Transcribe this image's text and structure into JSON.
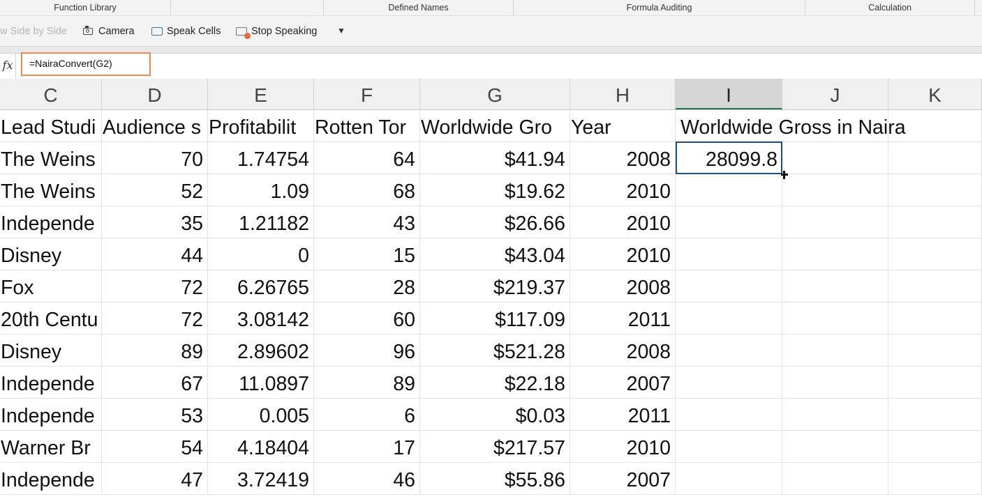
{
  "ribbon": {
    "groups": [
      "Function Library",
      "Defined Names",
      "Formula Auditing",
      "Calculation"
    ]
  },
  "toolbar": {
    "side_by_side": "w Side by Side",
    "camera": "Camera",
    "speak_cells": "Speak Cells",
    "stop_speaking": "Stop Speaking",
    "more_icon": "chevron-down-icon"
  },
  "formula_bar": {
    "fx_label": "fx",
    "formula": "=NairaConvert(G2)"
  },
  "sheet": {
    "columns": [
      "C",
      "D",
      "E",
      "F",
      "G",
      "H",
      "I",
      "J",
      "K"
    ],
    "selected_column": "I",
    "header_row": [
      "Lead Studi",
      "Audience s",
      "Profitabilit",
      "Rotten Tor",
      "Worldwide Gro",
      "Year",
      "Worldwide Gross in Naira",
      "",
      ""
    ],
    "rows": [
      [
        "The Weins",
        "70",
        "1.74754",
        "64",
        "$41.94",
        "2008",
        "28099.8",
        "",
        ""
      ],
      [
        "The Weins",
        "52",
        "1.09",
        "68",
        "$19.62",
        "2010",
        "",
        "",
        ""
      ],
      [
        "Independe",
        "35",
        "1.21182",
        "43",
        "$26.66",
        "2010",
        "",
        "",
        ""
      ],
      [
        "Disney",
        "44",
        "0",
        "15",
        "$43.04",
        "2010",
        "",
        "",
        ""
      ],
      [
        "Fox",
        "72",
        "6.26765",
        "28",
        "$219.37",
        "2008",
        "",
        "",
        ""
      ],
      [
        "20th Centu",
        "72",
        "3.08142",
        "60",
        "$117.09",
        "2011",
        "",
        "",
        ""
      ],
      [
        "Disney",
        "89",
        "2.89602",
        "96",
        "$521.28",
        "2008",
        "",
        "",
        ""
      ],
      [
        "Independe",
        "67",
        "11.0897",
        "89",
        "$22.18",
        "2007",
        "",
        "",
        ""
      ],
      [
        "Independe",
        "53",
        "0.005",
        "6",
        "$0.03",
        "2011",
        "",
        "",
        ""
      ],
      [
        "Warner Br",
        "54",
        "4.18404",
        "17",
        "$217.57",
        "2010",
        "",
        "",
        ""
      ],
      [
        "Independe",
        "47",
        "3.72419",
        "46",
        "$55.86",
        "2007",
        "",
        "",
        ""
      ]
    ]
  }
}
